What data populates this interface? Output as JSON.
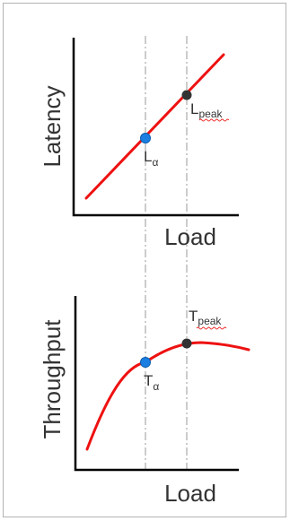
{
  "top_chart": {
    "y_axis_label": "Latency",
    "x_axis_label": "Load",
    "points": [
      {
        "name": "alpha",
        "base": "L",
        "subscript": "α",
        "color": "#1a7fe0"
      },
      {
        "name": "peak",
        "base": "L",
        "subscript": "peak",
        "color": "#333333"
      }
    ]
  },
  "bottom_chart": {
    "y_axis_label": "Throughput",
    "x_axis_label": "Load",
    "points": [
      {
        "name": "alpha",
        "base": "T",
        "subscript": "α",
        "color": "#1a7fe0"
      },
      {
        "name": "peak",
        "base": "T",
        "subscript": "peak",
        "color": "#333333"
      }
    ]
  },
  "colors": {
    "curve": "#ee1111",
    "axis": "#000000",
    "guide": "#9a9a9a",
    "alpha_point": "#1a7fe0",
    "peak_point": "#333333"
  }
}
